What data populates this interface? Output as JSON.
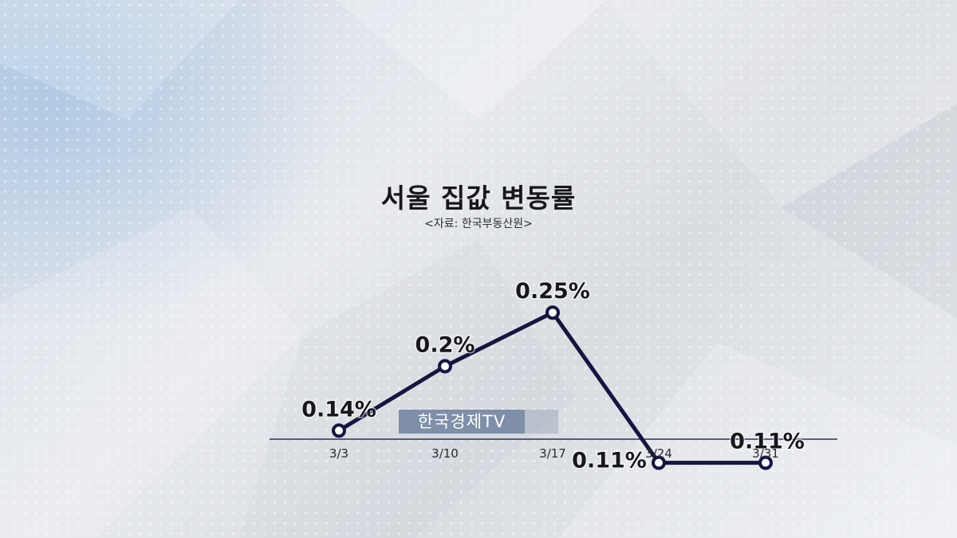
{
  "title": "서울 집값 변동률",
  "source": "<자료: 한국부동산원>",
  "watermark": "한국경제TV",
  "colors": {
    "line": "#14163f",
    "axis": "#2b2e5a",
    "text": "#17171c"
  },
  "chart_data": {
    "type": "line",
    "categories": [
      "3/3",
      "3/10",
      "3/17",
      "3/24",
      "3/31"
    ],
    "series": [
      {
        "values": [
          0.14,
          0.2,
          0.25,
          0.11,
          0.11
        ]
      }
    ],
    "data_labels": [
      "0.14%",
      "0.2%",
      "0.25%",
      "0.11%",
      "0.11%"
    ],
    "ylim": [
      0.0,
      0.3
    ],
    "grid": false,
    "legend": "none"
  }
}
